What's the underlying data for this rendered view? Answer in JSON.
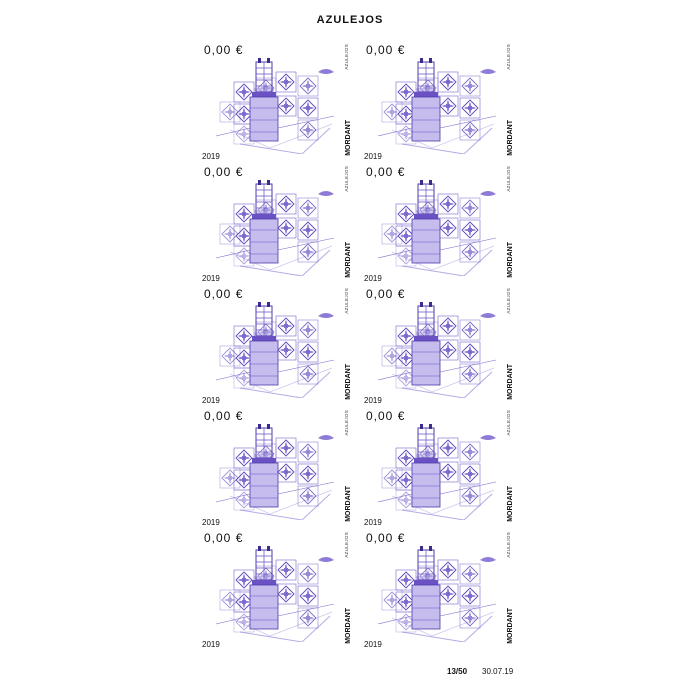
{
  "sheet": {
    "title": "AZULEJOS"
  },
  "stamps": [
    {
      "value": "0,00 €",
      "year": "2019",
      "series": "AZULEJOS",
      "artist": "MORDANT"
    },
    {
      "value": "0,00 €",
      "year": "2019",
      "series": "AZULEJOS",
      "artist": "MORDANT"
    },
    {
      "value": "0,00 €",
      "year": "2019",
      "series": "AZULEJOS",
      "artist": "MORDANT"
    },
    {
      "value": "0,00 €",
      "year": "2019",
      "series": "AZULEJOS",
      "artist": "MORDANT"
    },
    {
      "value": "0,00 €",
      "year": "2019",
      "series": "AZULEJOS",
      "artist": "MORDANT"
    },
    {
      "value": "0,00 €",
      "year": "2019",
      "series": "AZULEJOS",
      "artist": "MORDANT"
    },
    {
      "value": "0,00 €",
      "year": "2019",
      "series": "AZULEJOS",
      "artist": "MORDANT"
    },
    {
      "value": "0,00 €",
      "year": "2019",
      "series": "AZULEJOS",
      "artist": "MORDANT"
    },
    {
      "value": "0,00 €",
      "year": "2019",
      "series": "AZULEJOS",
      "artist": "MORDANT"
    },
    {
      "value": "0,00 €",
      "year": "2019",
      "series": "AZULEJOS",
      "artist": "MORDANT"
    }
  ],
  "footer": {
    "sheet_number": "13/50",
    "date": "30.07.19"
  },
  "colors": {
    "ink": "#6a52c4",
    "ink_light": "#b7aae6",
    "ink_dark": "#3c2a8c"
  },
  "icons": {
    "art": "azulejo-tile-chimney-illustration"
  }
}
